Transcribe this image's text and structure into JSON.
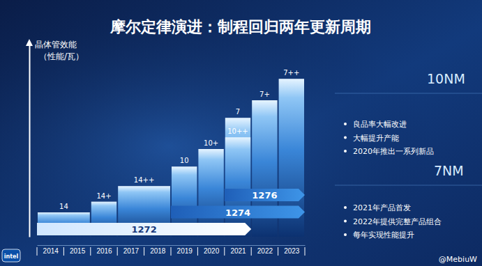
{
  "chart_data": {
    "type": "bar",
    "title": "摩尔定律演进：制程回归两年更新周期",
    "y_label": [
      "晶体管效能",
      "（性能/瓦）"
    ],
    "categories": [
      "14",
      "14+",
      "14++",
      "10",
      "10+",
      "10++",
      "7",
      "7+",
      "7++"
    ],
    "values": [
      12.5,
      18,
      26,
      36,
      45,
      51,
      61,
      70,
      81
    ],
    "start": [
      2013.5,
      2015.5,
      2016.5,
      2018.5,
      2019.5,
      2020.5,
      2020.5,
      2021.5,
      2022.5
    ],
    "end": [
      2015.5,
      2016.5,
      2018.5,
      2019.5,
      2020.5,
      2021.5,
      2021.5,
      2022.5,
      2023.5
    ],
    "color": "#3a86d8",
    "xlim": [
      2013.5,
      2023.5
    ],
    "xticks": [
      2014,
      2015,
      2016,
      2017,
      2018,
      2019,
      2020,
      2021,
      2022,
      2023
    ],
    "ylim": [
      0,
      100
    ],
    "yticks": [],
    "tick_labels": "x",
    "roadmaps": [
      {
        "label": "1272",
        "start": 2013.5,
        "end": 2021.5
      },
      {
        "label": "1274",
        "start": 2018.5,
        "end": 2023.5
      },
      {
        "label": "1276",
        "start": 2020.5,
        "end": 2023.5
      }
    ],
    "annotations": [
      {
        "title": "10NM",
        "items": [
          "良品率大幅改进",
          "大幅提升产能",
          "2020年推出一系列新品"
        ]
      },
      {
        "title": "7NM",
        "items": [
          "2021年产品首发",
          "2022年提供完整产品组合",
          "每年实现性能提升"
        ]
      }
    ],
    "logo": "intel",
    "watermark": "@MebiuW"
  }
}
